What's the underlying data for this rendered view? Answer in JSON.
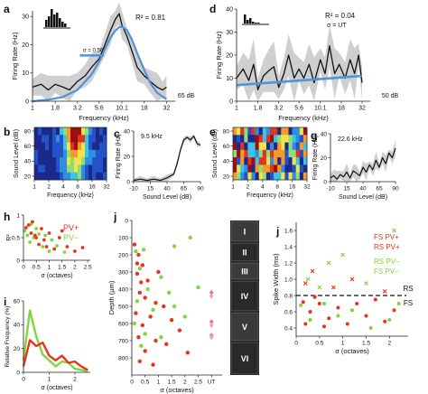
{
  "panel_labels": [
    "a",
    "b",
    "c",
    "d",
    "e",
    "f",
    "g",
    "h",
    "i",
    "j"
  ],
  "colors": {
    "pv_plus": "#e8341c",
    "pv_minus": "#7fd63a",
    "fit_blue": "#4f93d8",
    "ci_gray": "#cfcfcf",
    "axis": "#222222"
  },
  "chart_data": [
    {
      "panel": "a",
      "type": "line",
      "title": "",
      "xlabel": "Frequency (kHz)",
      "ylabel": "Firing Rate (Hz)",
      "x_scale": "log",
      "xlim": [
        1,
        40
      ],
      "ylim": [
        0,
        32
      ],
      "xticks": [
        "1",
        "1.8",
        "3.2",
        "5.6",
        "10.1",
        "18",
        "32"
      ],
      "yticks": [
        "0",
        "10",
        "20",
        "30"
      ],
      "annotations": [
        "R² = 0.81",
        "σ = 0.56",
        "65 dB"
      ],
      "series": [
        {
          "x": [
            1,
            1.25,
            1.5,
            1.8,
            2.2,
            2.6,
            3.2,
            3.9,
            4.6,
            5.6,
            6.5,
            7.5,
            8.5,
            9.4,
            10.1,
            11.5,
            13,
            15,
            18,
            21,
            25,
            29,
            32
          ],
          "y": [
            5,
            6,
            4,
            6,
            5,
            4,
            7,
            9,
            12,
            15,
            20,
            25,
            29,
            31,
            27,
            23,
            18,
            12,
            9,
            7,
            5,
            4,
            5
          ]
        },
        {
          "x": [
            1,
            1.5,
            2.2,
            3.2,
            4.6,
            5.6,
            6.5,
            7.5,
            8.5,
            9.4,
            10.1,
            11.5,
            13,
            15,
            18,
            21,
            25,
            32
          ],
          "y": [
            0,
            0.5,
            1.5,
            4,
            9.5,
            14,
            18.5,
            22.5,
            25,
            26.2,
            26.4,
            25.2,
            22,
            17,
            11,
            6.5,
            3,
            0.7
          ]
        }
      ]
    },
    {
      "panel": "b",
      "type": "heatmap",
      "xlabel": "Frequency (kHz)",
      "ylabel": "Sound Level (dB)",
      "xticks": [
        "1",
        "2",
        "4",
        "8",
        "16",
        "32"
      ],
      "yticks": [
        "20",
        "40",
        "60",
        "80"
      ],
      "rows": 7,
      "cols": 20
    },
    {
      "panel": "c",
      "type": "line",
      "xlabel": "Sound Level (dB)",
      "ylabel": "Firing Rate (Hz)",
      "xlim": [
        -10,
        90
      ],
      "ylim": [
        0,
        40
      ],
      "xticks": [
        "-10",
        "15",
        "40",
        "65",
        "90"
      ],
      "yticks": [
        "0",
        "20",
        "40"
      ],
      "annotations": [
        "9.5 kHz"
      ],
      "x": [
        -10,
        0,
        10,
        20,
        30,
        40,
        50,
        55,
        60,
        65,
        70,
        75,
        80,
        85,
        90
      ],
      "y": [
        1,
        2,
        1,
        2,
        1,
        3,
        6,
        14,
        25,
        33,
        35,
        33,
        36,
        30,
        29
      ]
    },
    {
      "panel": "d",
      "type": "line",
      "xlabel": "Frequency (kHz)",
      "ylabel": "Firing Rate (Hz)",
      "x_scale": "log",
      "xlim": [
        1,
        40
      ],
      "ylim": [
        0,
        40
      ],
      "xticks": [
        "1",
        "1.8",
        "3.2",
        "5.6",
        "10.1",
        "18",
        "32"
      ],
      "yticks": [
        "0",
        "10",
        "20",
        "30",
        "40"
      ],
      "annotations": [
        "R² = 0.04",
        "σ = UT",
        "50 dB"
      ],
      "series": [
        {
          "x": [
            1,
            1.2,
            1.4,
            1.6,
            1.8,
            2.1,
            2.4,
            2.8,
            3.2,
            3.7,
            4.2,
            4.9,
            5.6,
            6.4,
            7.4,
            8.5,
            10.1,
            11.5,
            13,
            15,
            17,
            20,
            23,
            26,
            29,
            32
          ],
          "y": [
            10,
            14,
            9,
            16,
            5,
            11,
            13,
            15,
            6,
            12,
            20,
            10,
            14,
            10,
            16,
            8,
            18,
            12,
            24,
            12,
            16,
            10,
            18,
            12,
            20,
            8
          ]
        },
        {
          "x": [
            1,
            32
          ],
          "y": [
            7,
            11
          ]
        }
      ]
    },
    {
      "panel": "e",
      "type": "heatmap",
      "xlabel": "Frequency (kHz)",
      "ylabel": "Sound Level (dB)",
      "xticks": [
        "1",
        "2",
        "4",
        "8",
        "16",
        "32"
      ],
      "yticks": [
        "20",
        "40",
        "60",
        "80"
      ],
      "rows": 7,
      "cols": 20
    },
    {
      "panel": "f",
      "type": "line",
      "xlabel": "Sound Level (dB)",
      "ylabel": "Firing Rate (Hz)",
      "xlim": [
        -10,
        90
      ],
      "ylim": [
        0,
        40
      ],
      "xticks": [
        "-10",
        "15",
        "40",
        "65",
        "90"
      ],
      "yticks": [
        "0",
        "20",
        "40"
      ],
      "annotations": [
        "22.6 kHz"
      ],
      "x": [
        -10,
        -5,
        0,
        5,
        10,
        15,
        20,
        25,
        30,
        35,
        40,
        45,
        50,
        55,
        60,
        65,
        70,
        75,
        80,
        85,
        90
      ],
      "y": [
        3,
        5,
        2,
        6,
        4,
        8,
        3,
        9,
        7,
        5,
        12,
        8,
        14,
        10,
        18,
        12,
        20,
        15,
        24,
        20,
        28
      ]
    },
    {
      "panel": "g",
      "type": "scatter",
      "xlabel": "σ (octaves)",
      "ylabel": "R²",
      "xlim": [
        0,
        2.6
      ],
      "ylim": [
        0,
        1
      ],
      "xticks": [
        "0",
        "0.5",
        "1",
        "1.5",
        "2",
        "2.5"
      ],
      "yticks": [
        "0",
        "0.5",
        "1"
      ],
      "legend": [
        "PV+",
        "PV−"
      ],
      "series": [
        {
          "name": "PV+",
          "points": [
            [
              0.1,
              0.72
            ],
            [
              0.2,
              0.78
            ],
            [
              0.3,
              0.6
            ],
            [
              0.35,
              0.85
            ],
            [
              0.45,
              0.55
            ],
            [
              0.5,
              0.5
            ],
            [
              0.6,
              0.35
            ],
            [
              0.7,
              0.7
            ],
            [
              0.8,
              0.45
            ],
            [
              0.9,
              0.3
            ],
            [
              1.0,
              0.6
            ],
            [
              1.2,
              0.25
            ],
            [
              1.4,
              0.5
            ],
            [
              1.5,
              0.65
            ],
            [
              1.7,
              0.3
            ],
            [
              2.0,
              0.2
            ],
            [
              2.3,
              0.28
            ]
          ]
        },
        {
          "name": "PV−",
          "points": [
            [
              0.05,
              0.65
            ],
            [
              0.15,
              0.55
            ],
            [
              0.25,
              0.4
            ],
            [
              0.3,
              0.8
            ],
            [
              0.4,
              0.5
            ],
            [
              0.5,
              0.7
            ],
            [
              0.6,
              0.58
            ],
            [
              0.75,
              0.3
            ],
            [
              0.85,
              0.55
            ],
            [
              1.0,
              0.2
            ],
            [
              1.1,
              0.45
            ],
            [
              1.3,
              0.32
            ],
            [
              1.6,
              0.18
            ]
          ]
        }
      ]
    },
    {
      "panel": "h",
      "type": "line",
      "xlabel": "σ (octaves)",
      "ylabel": "Relative Frequency (%)",
      "xlim": [
        0,
        2.6
      ],
      "ylim": [
        0,
        60
      ],
      "xticks": [
        "0",
        "1",
        "2"
      ],
      "yticks": [
        "0",
        "20",
        "40",
        "60"
      ],
      "x": [
        0,
        0.25,
        0.5,
        0.75,
        1.0,
        1.25,
        1.5,
        1.75,
        2.0,
        2.25,
        2.5
      ],
      "series": [
        {
          "name": "PV+",
          "values": [
            5,
            27,
            22,
            25,
            14,
            10,
            14,
            8,
            9,
            5,
            2
          ]
        },
        {
          "name": "PV−",
          "values": [
            10,
            52,
            30,
            15,
            10,
            5,
            9,
            8,
            3,
            2,
            1
          ]
        }
      ]
    },
    {
      "panel": "i",
      "type": "scatter",
      "xlabel": "σ (octaves)",
      "ylabel": "Depth (μm)",
      "xlim": [
        0,
        3.4
      ],
      "ylim": [
        900,
        0
      ],
      "xticks": [
        "0",
        "0.5",
        "1",
        "1.5",
        "2",
        "2.5",
        "UT"
      ],
      "yticks": [
        "0",
        "100",
        "200",
        "300",
        "400",
        "500",
        "600",
        "700",
        "800"
      ],
      "layers": [
        "I",
        "II",
        "III",
        "IV",
        "V",
        "VI"
      ],
      "series": [
        {
          "name": "PV+",
          "points": [
            [
              0.1,
              140
            ],
            [
              0.25,
              200
            ],
            [
              0.4,
              260
            ],
            [
              0.2,
              310
            ],
            [
              0.6,
              350
            ],
            [
              0.3,
              420
            ],
            [
              0.5,
              450
            ],
            [
              0.9,
              480
            ],
            [
              1.2,
              500
            ],
            [
              0.15,
              540
            ],
            [
              0.7,
              560
            ],
            [
              1.5,
              580
            ],
            [
              0.4,
              610
            ],
            [
              1.8,
              640
            ],
            [
              0.25,
              680
            ],
            [
              0.9,
              700
            ],
            [
              1.3,
              720
            ],
            [
              0.5,
              760
            ],
            [
              2.1,
              770
            ],
            [
              0.3,
              820
            ],
            [
              0.8,
              840
            ],
            [
              0.2,
              250
            ],
            [
              1.0,
              300
            ],
            [
              0.35,
              360
            ]
          ]
        },
        {
          "name": "PV−",
          "points": [
            [
              0.15,
              180
            ],
            [
              0.45,
              170
            ],
            [
              1.6,
              150
            ],
            [
              2.2,
              100
            ],
            [
              0.3,
              280
            ],
            [
              1.1,
              330
            ],
            [
              2.5,
              390
            ],
            [
              0.6,
              400
            ],
            [
              0.2,
              470
            ],
            [
              1.4,
              420
            ],
            [
              0.8,
              520
            ],
            [
              2.0,
              560
            ],
            [
              0.1,
              600
            ],
            [
              0.5,
              660
            ],
            [
              1.1,
              680
            ],
            [
              0.35,
              730
            ],
            [
              1.6,
              500
            ]
          ]
        },
        {
          "name": "UT",
          "points": [
            [
              3.0,
              420
            ],
            [
              3.0,
              440
            ],
            [
              3.0,
              590
            ],
            [
              3.0,
              610
            ],
            [
              3.0,
              670
            ],
            [
              3.0,
              680
            ]
          ]
        }
      ]
    },
    {
      "panel": "j",
      "type": "scatter",
      "xlabel": "σ (octaves)",
      "ylabel": "Spike Width (ms)",
      "xlim": [
        0,
        2.4
      ],
      "ylim": [
        0.3,
        1.7
      ],
      "xticks": [
        "0",
        "0.5",
        "1",
        "1.5",
        "2"
      ],
      "yticks": [
        "0.4",
        "0.6",
        "0.8",
        "1.0",
        "1.2",
        "1.4",
        "1.6"
      ],
      "threshold": 0.8,
      "threshold_labels": [
        "RS",
        "FS"
      ],
      "legend": [
        "FS PV+",
        "RS PV+",
        "RS PV−",
        "FS PV−"
      ],
      "series": [
        {
          "name": "FS PV+",
          "points": [
            [
              0.15,
              0.72
            ],
            [
              0.3,
              0.6
            ],
            [
              0.5,
              0.7
            ],
            [
              0.7,
              0.52
            ],
            [
              0.9,
              0.65
            ],
            [
              1.1,
              0.45
            ],
            [
              1.3,
              0.7
            ],
            [
              1.5,
              0.55
            ],
            [
              1.7,
              0.75
            ],
            [
              1.9,
              0.48
            ],
            [
              2.1,
              0.62
            ],
            [
              0.2,
              0.45
            ],
            [
              0.4,
              0.78
            ],
            [
              0.6,
              0.42
            ]
          ]
        },
        {
          "name": "RS PV+",
          "points": [
            [
              0.2,
              0.95
            ],
            [
              0.35,
              1.1
            ],
            [
              0.8,
              0.9
            ],
            [
              1.2,
              1.0
            ],
            [
              1.9,
              0.85
            ]
          ]
        },
        {
          "name": "RS PV−",
          "points": [
            [
              0.25,
              1.0
            ],
            [
              0.5,
              0.9
            ],
            [
              1.0,
              1.3
            ],
            [
              1.5,
              0.95
            ],
            [
              2.1,
              1.6
            ],
            [
              0.7,
              1.2
            ]
          ]
        },
        {
          "name": "FS PV−",
          "points": [
            [
              0.1,
              0.68
            ],
            [
              0.3,
              0.5
            ],
            [
              0.6,
              0.7
            ],
            [
              0.9,
              0.55
            ],
            [
              1.2,
              0.62
            ],
            [
              1.6,
              0.4
            ],
            [
              2.0,
              0.5
            ],
            [
              2.2,
              0.7
            ]
          ]
        }
      ]
    }
  ]
}
